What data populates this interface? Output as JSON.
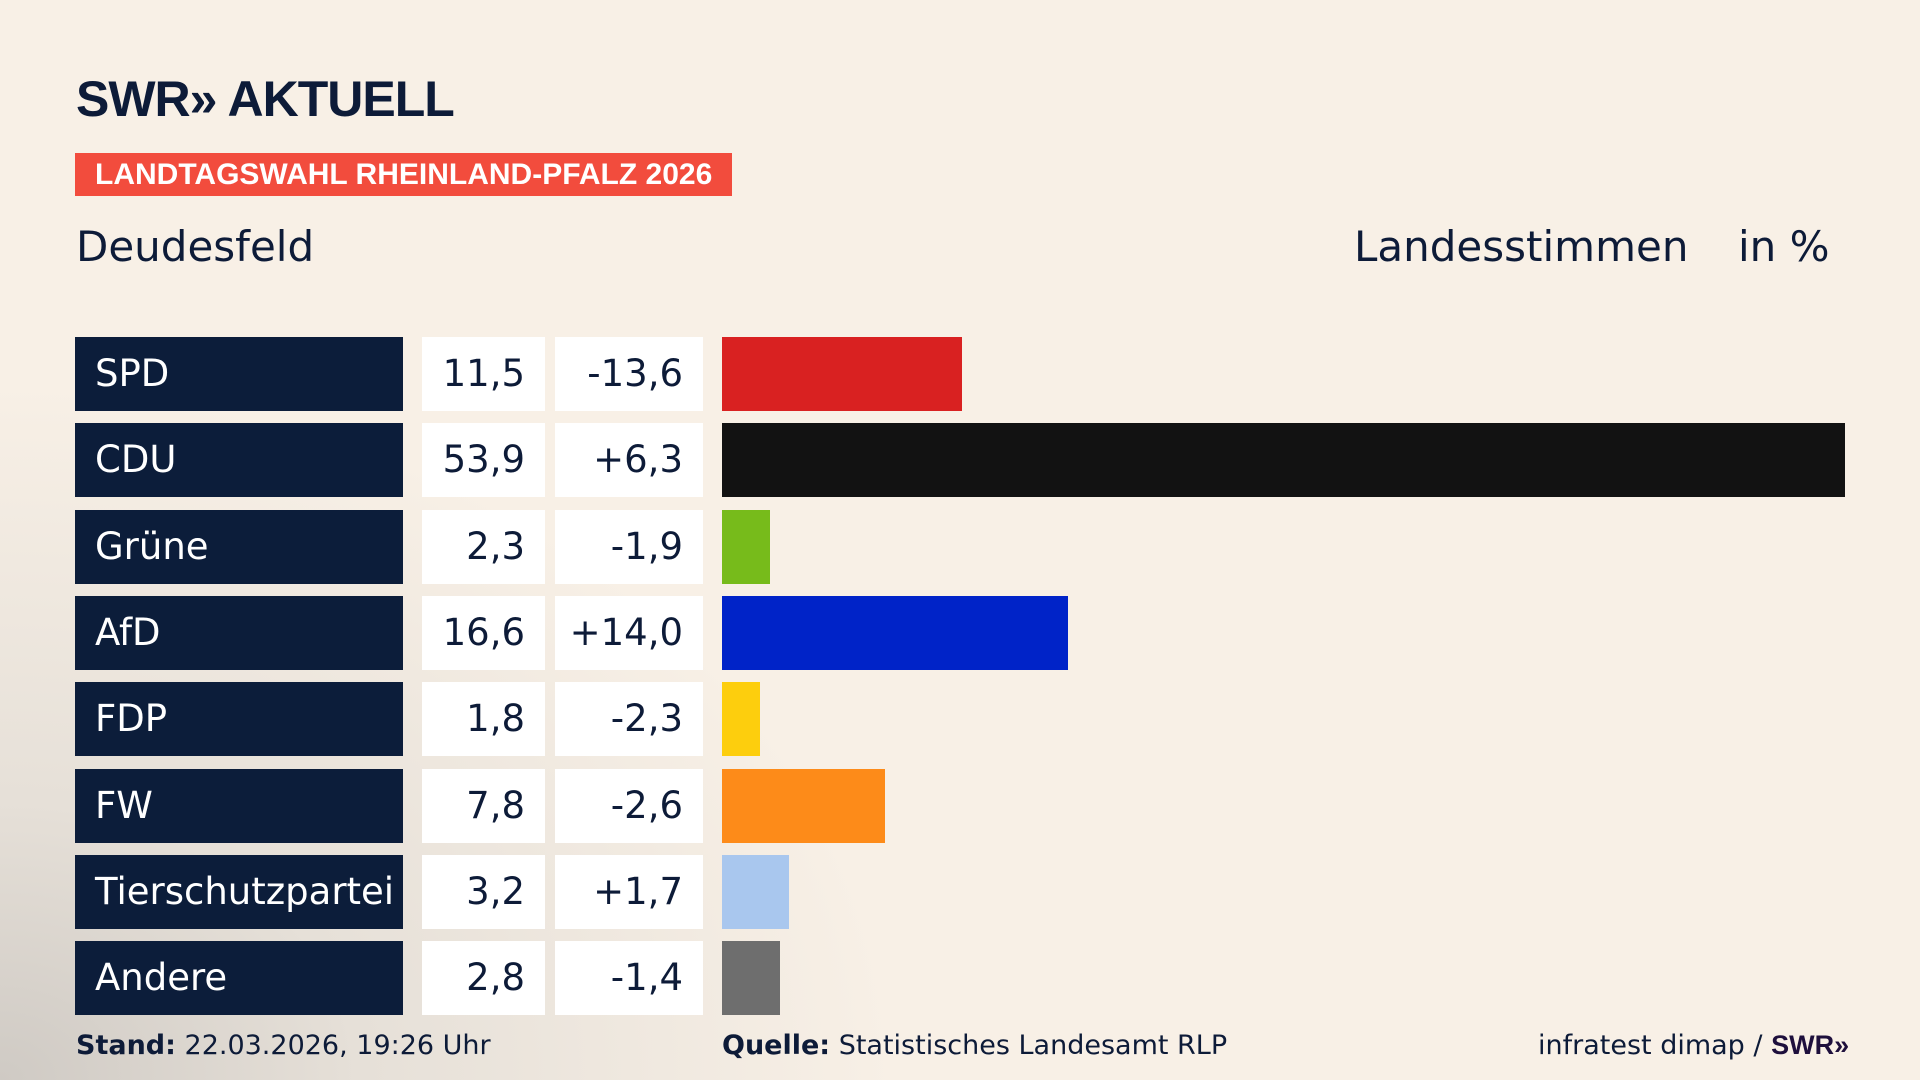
{
  "header": {
    "logo": "SWR» AKTUELL",
    "banner": "LANDTAGSWAHL RHEINLAND-PFALZ 2026",
    "region": "Deudesfeld",
    "kind": "Landesstimmen",
    "unit": "in %"
  },
  "chart_data": {
    "type": "bar",
    "categories": [
      "SPD",
      "CDU",
      "Grüne",
      "AfD",
      "FDP",
      "FW",
      "Tierschutzpartei",
      "Andere"
    ],
    "values": [
      11.5,
      53.9,
      2.3,
      16.6,
      1.8,
      7.8,
      3.2,
      2.8
    ],
    "values_label": [
      "11,5",
      "53,9",
      "2,3",
      "16,6",
      "1,8",
      "7,8",
      "3,2",
      "2,8"
    ],
    "diff_label": [
      "-13,6",
      "+6,3",
      "-1,9",
      "+14,0",
      "-2,3",
      "-2,6",
      "+1,7",
      "-1,4"
    ],
    "colors": [
      "#d92121",
      "#121212",
      "#77bb1b",
      "#0023c8",
      "#fdce0d",
      "#fd8b19",
      "#a9c7ee",
      "#6e6e6e"
    ],
    "ylabel": "in %",
    "orientation": "horizontal",
    "grid": false
  },
  "footer": {
    "stand_label": "Stand:",
    "stand_value": "22.03.2026, 19:26 Uhr",
    "source_label": "Quelle:",
    "source_value": "Statistisches Landesamt RLP",
    "credit": "infratest dimap /",
    "credit_logo": "SWR»"
  }
}
